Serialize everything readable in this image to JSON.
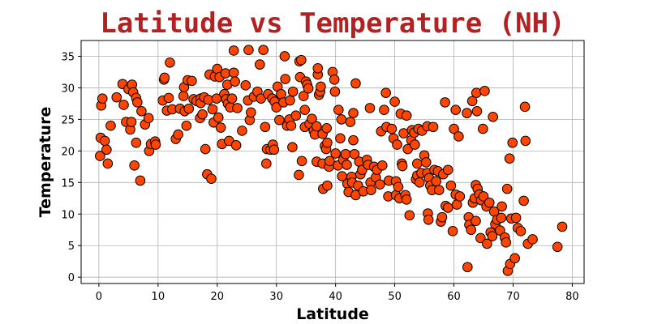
{
  "chart_data": {
    "type": "scatter",
    "title": "Latitude vs Temperature (NH)",
    "xlabel": "Latitude",
    "ylabel": "Temperature",
    "xlim": [
      -3,
      82
    ],
    "ylim": [
      -1,
      37.5
    ],
    "xticks": [
      0,
      10,
      20,
      30,
      40,
      50,
      60,
      70,
      80
    ],
    "yticks": [
      0,
      5,
      10,
      15,
      20,
      25,
      30,
      35
    ],
    "grid": true,
    "colors": {
      "title": "#b22222",
      "marker_fill": "#ff4500",
      "marker_edge": "#000000",
      "grid": "#b0b0b0"
    },
    "points": [
      [
        0.2,
        19.2
      ],
      [
        0.3,
        22.1
      ],
      [
        0.4,
        27.2
      ],
      [
        0.6,
        28.3
      ],
      [
        1.0,
        21.6
      ],
      [
        1.3,
        20.2
      ],
      [
        1.5,
        18.0
      ],
      [
        2.0,
        24.0
      ],
      [
        3.0,
        28.5
      ],
      [
        4.0,
        30.6
      ],
      [
        4.2,
        27.3
      ],
      [
        4.6,
        24.6
      ],
      [
        5.0,
        29.8
      ],
      [
        5.3,
        23.4
      ],
      [
        5.5,
        24.6
      ],
      [
        5.6,
        30.5
      ],
      [
        5.8,
        29.3
      ],
      [
        6.0,
        17.7
      ],
      [
        6.3,
        28.4
      ],
      [
        6.5,
        27.7
      ],
      [
        6.3,
        21.3
      ],
      [
        7.2,
        26.3
      ],
      [
        7.0,
        15.3
      ],
      [
        7.8,
        24.2
      ],
      [
        8.4,
        25.2
      ],
      [
        8.5,
        20.0
      ],
      [
        8.8,
        21.1
      ],
      [
        9.5,
        21.5
      ],
      [
        9.6,
        21.0
      ],
      [
        10.8,
        28.0
      ],
      [
        11.0,
        31.3
      ],
      [
        11.1,
        31.6
      ],
      [
        11.5,
        26.4
      ],
      [
        11.8,
        28.4
      ],
      [
        12.0,
        34.0
      ],
      [
        12.4,
        26.6
      ],
      [
        13.0,
        21.9
      ],
      [
        13.4,
        22.6
      ],
      [
        13.7,
        26.7
      ],
      [
        14.3,
        28.7
      ],
      [
        14.4,
        30.1
      ],
      [
        14.5,
        26.3
      ],
      [
        14.8,
        24.0
      ],
      [
        15.0,
        31.2
      ],
      [
        15.2,
        26.7
      ],
      [
        15.7,
        31.1
      ],
      [
        16.0,
        28.2
      ],
      [
        16.5,
        27.9
      ],
      [
        17.1,
        25.2
      ],
      [
        17.2,
        28.3
      ],
      [
        17.2,
        27.6
      ],
      [
        17.5,
        25.8
      ],
      [
        17.8,
        28.5
      ],
      [
        18.0,
        20.3
      ],
      [
        18.3,
        16.3
      ],
      [
        18.5,
        28.1
      ],
      [
        18.7,
        32.1
      ],
      [
        19.0,
        15.6
      ],
      [
        19.2,
        26.6
      ],
      [
        19.4,
        24.5
      ],
      [
        19.6,
        31.8
      ],
      [
        19.9,
        28.3
      ],
      [
        20.0,
        33.0
      ],
      [
        20.2,
        25.3
      ],
      [
        20.4,
        31.7
      ],
      [
        20.6,
        23.7
      ],
      [
        20.8,
        21.1
      ],
      [
        21.2,
        29.0
      ],
      [
        21.4,
        32.3
      ],
      [
        21.5,
        28.2
      ],
      [
        21.7,
        30.5
      ],
      [
        21.8,
        27.5
      ],
      [
        22.0,
        21.6
      ],
      [
        22.2,
        26.9
      ],
      [
        22.5,
        28.3
      ],
      [
        22.8,
        32.4
      ],
      [
        22.8,
        35.9
      ],
      [
        23.0,
        31.0
      ],
      [
        23.2,
        20.9
      ],
      [
        23.4,
        26.8
      ],
      [
        24.2,
        23.2
      ],
      [
        24.8,
        30.4
      ],
      [
        25.2,
        28.0
      ],
      [
        25.3,
        36.0
      ],
      [
        25.5,
        24.9
      ],
      [
        25.7,
        26.1
      ],
      [
        26.2,
        28.6
      ],
      [
        26.8,
        29.4
      ],
      [
        27.2,
        33.7
      ],
      [
        27.4,
        28.3
      ],
      [
        27.8,
        36.0
      ],
      [
        28.1,
        23.8
      ],
      [
        28.3,
        18.0
      ],
      [
        28.4,
        20.3
      ],
      [
        28.6,
        29.0
      ],
      [
        29.0,
        20.2
      ],
      [
        29.3,
        28.3
      ],
      [
        29.4,
        21.0
      ],
      [
        29.6,
        20.2
      ],
      [
        29.7,
        27.8
      ],
      [
        30.0,
        26.9
      ],
      [
        30.2,
        30.2
      ],
      [
        30.5,
        24.9
      ],
      [
        30.8,
        29.0
      ],
      [
        31.2,
        27.7
      ],
      [
        31.4,
        35.0
      ],
      [
        31.5,
        31.4
      ],
      [
        31.8,
        24.0
      ],
      [
        32.2,
        25.0
      ],
      [
        32.3,
        28.0
      ],
      [
        32.5,
        24.0
      ],
      [
        32.7,
        20.6
      ],
      [
        32.8,
        29.4
      ],
      [
        33.3,
        25.6
      ],
      [
        33.8,
        16.2
      ],
      [
        33.9,
        34.2
      ],
      [
        34.0,
        31.7
      ],
      [
        34.2,
        34.4
      ],
      [
        34.3,
        18.4
      ],
      [
        34.6,
        28.7
      ],
      [
        34.8,
        26.5
      ],
      [
        34.8,
        23.8
      ],
      [
        35.0,
        31.0
      ],
      [
        35.2,
        30.5
      ],
      [
        35.4,
        29.9
      ],
      [
        35.6,
        24.3
      ],
      [
        36.0,
        25.1
      ],
      [
        36.3,
        23.2
      ],
      [
        36.5,
        22.6
      ],
      [
        36.8,
        18.3
      ],
      [
        36.8,
        23.9
      ],
      [
        37.0,
        32.1
      ],
      [
        37.0,
        33.1
      ],
      [
        37.2,
        28.9
      ],
      [
        37.4,
        29.4
      ],
      [
        37.5,
        30.2
      ],
      [
        37.8,
        22.7
      ],
      [
        37.8,
        18.0
      ],
      [
        37.9,
        14.0
      ],
      [
        38.2,
        20.8
      ],
      [
        38.4,
        20.3
      ],
      [
        38.5,
        23.6
      ],
      [
        38.6,
        21.3
      ],
      [
        38.6,
        14.5
      ],
      [
        38.9,
        17.5
      ],
      [
        39.0,
        18.4
      ],
      [
        39.5,
        32.5
      ],
      [
        39.8,
        31.3
      ],
      [
        39.9,
        29.4
      ],
      [
        40.0,
        19.6
      ],
      [
        40.4,
        17.7
      ],
      [
        40.5,
        26.5
      ],
      [
        40.8,
        22.0
      ],
      [
        41.0,
        25.0
      ],
      [
        41.1,
        16.0
      ],
      [
        41.3,
        18.6
      ],
      [
        41.7,
        19.5
      ],
      [
        41.9,
        17.8
      ],
      [
        42.0,
        14.8
      ],
      [
        42.2,
        13.5
      ],
      [
        42.5,
        24.6
      ],
      [
        42.7,
        15.9
      ],
      [
        42.8,
        15.0
      ],
      [
        43.0,
        26.0
      ],
      [
        43.0,
        21.7
      ],
      [
        43.2,
        19.5
      ],
      [
        43.4,
        30.7
      ],
      [
        43.4,
        13.0
      ],
      [
        43.8,
        14.5
      ],
      [
        44.0,
        18.3
      ],
      [
        44.2,
        16.3
      ],
      [
        44.5,
        17.0
      ],
      [
        44.7,
        13.6
      ],
      [
        45.3,
        18.6
      ],
      [
        45.5,
        17.8
      ],
      [
        45.8,
        26.8
      ],
      [
        45.9,
        15.0
      ],
      [
        46.0,
        13.8
      ],
      [
        46.5,
        17.5
      ],
      [
        46.8,
        15.8
      ],
      [
        47.0,
        17.0
      ],
      [
        47.5,
        14.7
      ],
      [
        47.7,
        23.1
      ],
      [
        47.9,
        17.7
      ],
      [
        48.2,
        26.5
      ],
      [
        48.5,
        29.2
      ],
      [
        48.6,
        23.8
      ],
      [
        48.9,
        12.8
      ],
      [
        49.0,
        15.3
      ],
      [
        49.5,
        23.5
      ],
      [
        49.8,
        22.0
      ],
      [
        50.0,
        27.8
      ],
      [
        50.2,
        15.2
      ],
      [
        50.2,
        13.0
      ],
      [
        50.4,
        21.0
      ],
      [
        50.6,
        14.3
      ],
      [
        50.8,
        12.5
      ],
      [
        51.0,
        25.9
      ],
      [
        51.2,
        18.0
      ],
      [
        51.3,
        17.6
      ],
      [
        51.5,
        22.8
      ],
      [
        51.8,
        13.0
      ],
      [
        52.0,
        25.6
      ],
      [
        52.0,
        12.3
      ],
      [
        52.2,
        20.3
      ],
      [
        52.5,
        9.8
      ],
      [
        52.8,
        21.7
      ],
      [
        52.9,
        23.3
      ],
      [
        53.3,
        22.9
      ],
      [
        53.4,
        21.0
      ],
      [
        53.6,
        15.5
      ],
      [
        53.8,
        16.1
      ],
      [
        53.8,
        18.0
      ],
      [
        54.0,
        23.5
      ],
      [
        54.2,
        15.0
      ],
      [
        54.5,
        16.5
      ],
      [
        54.6,
        23.2
      ],
      [
        55.0,
        19.3
      ],
      [
        55.3,
        18.2
      ],
      [
        55.5,
        23.9
      ],
      [
        55.5,
        16.5
      ],
      [
        55.6,
        10.1
      ],
      [
        55.7,
        9.1
      ],
      [
        55.8,
        15.7
      ],
      [
        56.0,
        14.5
      ],
      [
        56.3,
        13.8
      ],
      [
        56.5,
        23.8
      ],
      [
        56.7,
        17.0
      ],
      [
        57.0,
        15.2
      ],
      [
        57.3,
        16.8
      ],
      [
        57.5,
        13.8
      ],
      [
        57.8,
        8.8
      ],
      [
        58.0,
        9.5
      ],
      [
        58.2,
        16.3
      ],
      [
        58.5,
        27.7
      ],
      [
        58.6,
        11.3
      ],
      [
        59.0,
        17.0
      ],
      [
        59.0,
        11.0
      ],
      [
        59.5,
        14.5
      ],
      [
        59.8,
        7.3
      ],
      [
        60.0,
        23.5
      ],
      [
        60.3,
        26.5
      ],
      [
        60.3,
        13.1
      ],
      [
        60.5,
        11.5
      ],
      [
        60.8,
        22.3
      ],
      [
        61.0,
        12.8
      ],
      [
        62.2,
        26.0
      ],
      [
        62.3,
        1.6
      ],
      [
        62.5,
        9.5
      ],
      [
        62.6,
        8.3
      ],
      [
        62.9,
        7.5
      ],
      [
        63.1,
        27.9
      ],
      [
        63.2,
        11.8
      ],
      [
        63.5,
        12.5
      ],
      [
        63.7,
        8.9
      ],
      [
        63.7,
        14.6
      ],
      [
        63.8,
        29.2
      ],
      [
        63.9,
        26.3
      ],
      [
        64.0,
        14.0
      ],
      [
        64.3,
        13.1
      ],
      [
        64.5,
        6.2
      ],
      [
        64.6,
        12.2
      ],
      [
        64.9,
        23.5
      ],
      [
        65.0,
        12.8
      ],
      [
        65.2,
        29.5
      ],
      [
        65.5,
        11.2
      ],
      [
        65.6,
        5.3
      ],
      [
        66.0,
        11.8
      ],
      [
        66.2,
        7.1
      ],
      [
        66.5,
        6.5
      ],
      [
        66.6,
        25.4
      ],
      [
        66.8,
        10.4
      ],
      [
        67.0,
        8.4
      ],
      [
        67.3,
        9.1
      ],
      [
        67.8,
        7.4
      ],
      [
        68.0,
        9.4
      ],
      [
        68.1,
        11.2
      ],
      [
        68.6,
        6.3
      ],
      [
        68.8,
        5.5
      ],
      [
        69.0,
        14.0
      ],
      [
        69.1,
        1.0
      ],
      [
        69.4,
        18.8
      ],
      [
        69.5,
        2.1
      ],
      [
        69.7,
        9.3
      ],
      [
        69.9,
        21.3
      ],
      [
        70.3,
        3.0
      ],
      [
        70.5,
        9.4
      ],
      [
        70.8,
        7.8
      ],
      [
        71.3,
        7.3
      ],
      [
        71.8,
        12.1
      ],
      [
        72.0,
        27.0
      ],
      [
        72.1,
        21.6
      ],
      [
        72.5,
        5.3
      ],
      [
        73.3,
        6.0
      ],
      [
        77.5,
        4.8
      ],
      [
        78.3,
        8.0
      ]
    ]
  }
}
